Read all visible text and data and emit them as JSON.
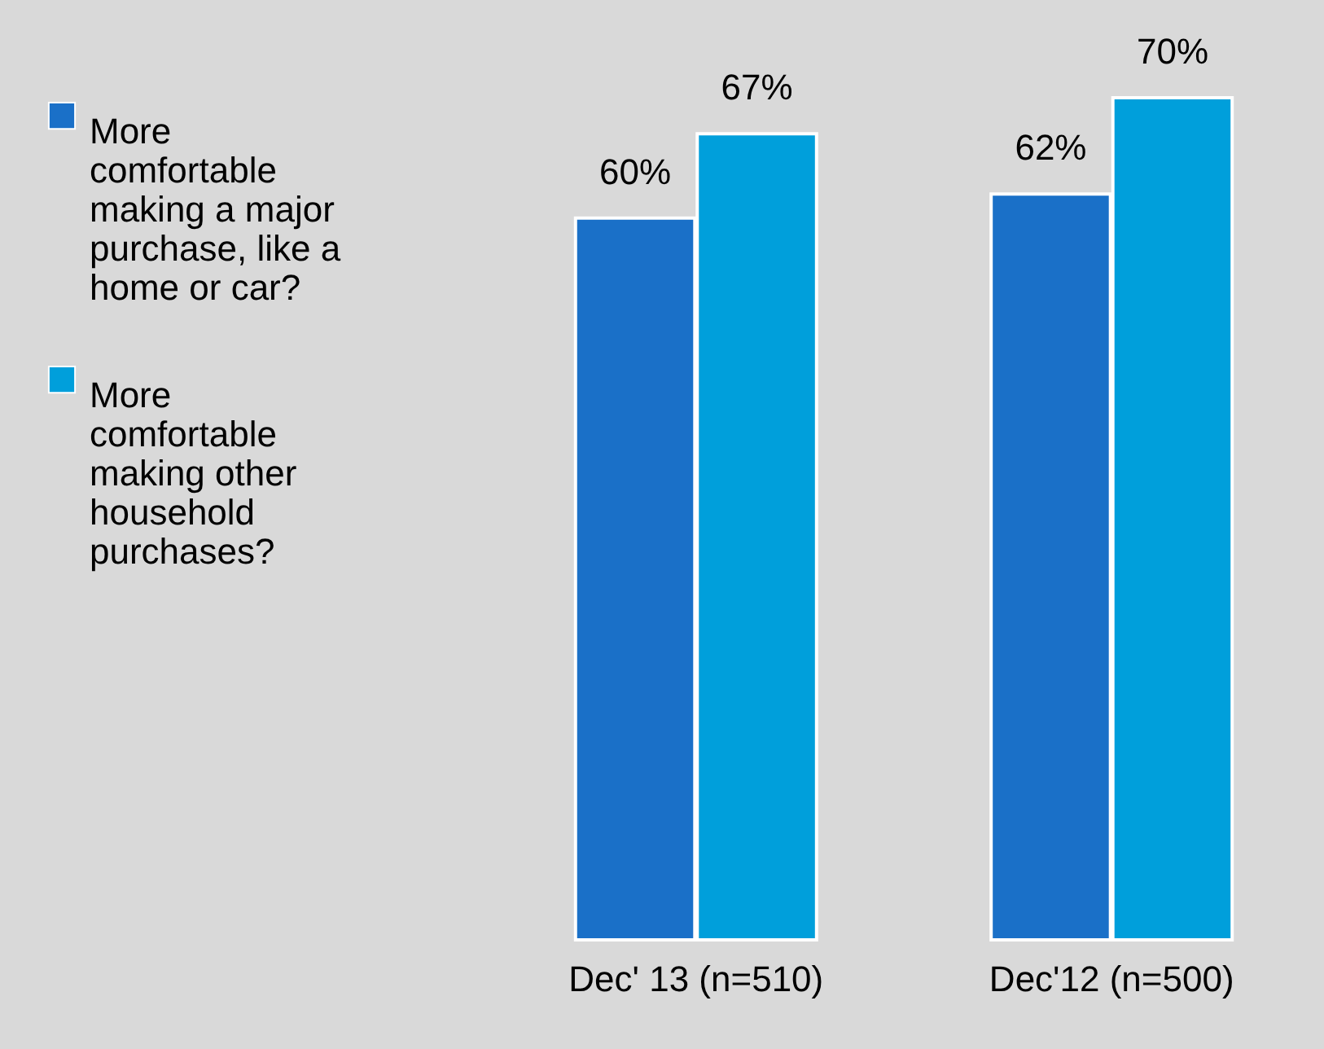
{
  "chart_data": {
    "type": "bar",
    "categories": [
      "Dec' 13 (n=510)",
      "Dec'12 (n=500)"
    ],
    "series": [
      {
        "name": "More comfortable making a major purchase, like a home or car?",
        "color": "#1a70c8",
        "values": [
          60,
          62
        ],
        "value_labels": [
          "60%",
          "62%"
        ]
      },
      {
        "name": "More comfortable making other household purchases?",
        "color": "#009fdb",
        "values": [
          67,
          70
        ],
        "value_labels": [
          "67%",
          "70%"
        ]
      }
    ],
    "legend": "left"
  }
}
